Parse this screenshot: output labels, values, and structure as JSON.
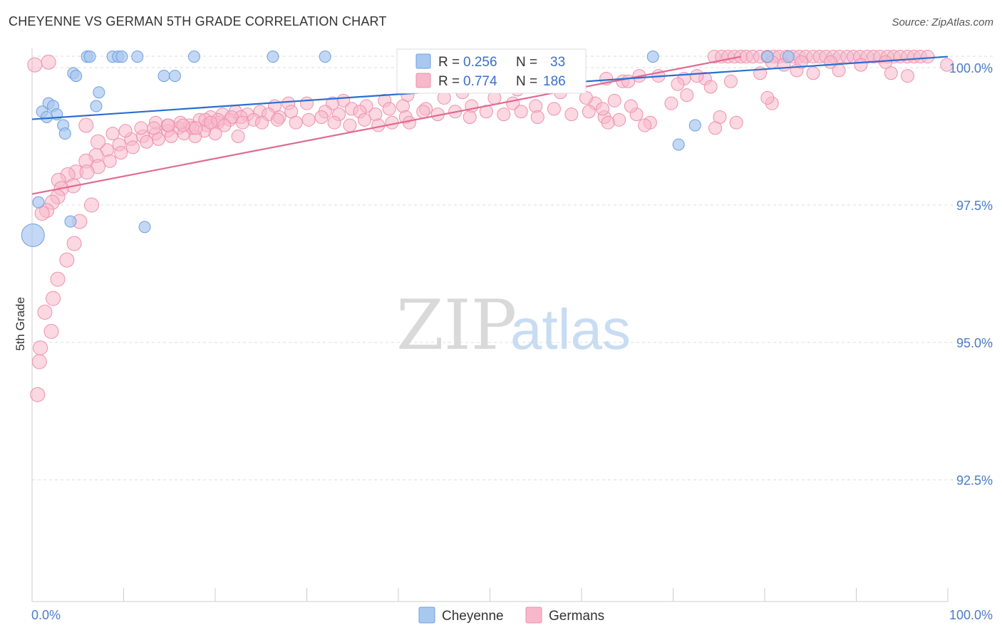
{
  "title": "CHEYENNE VS GERMAN 5TH GRADE CORRELATION CHART",
  "source": "Source: ZipAtlas.com",
  "watermark": {
    "zip": "ZIP",
    "atlas": "atlas"
  },
  "colors": {
    "cheyenne_fill": "#a9c8f0",
    "cheyenne_stroke": "#6f9fe0",
    "cheyenne_line": "#2a6ed0",
    "german_fill": "#f7b8cb",
    "german_stroke": "#ee90ad",
    "german_line": "#e06a93",
    "axis_text": "#4a7cc9",
    "grid": "#dddddd"
  },
  "legend": {
    "r_label": "R =",
    "n_label": "N =",
    "cheyenne": {
      "r": "0.256",
      "n": "33"
    },
    "german": {
      "r": "0.774",
      "n": "186"
    }
  },
  "chart_data": {
    "type": "scatter",
    "title": "CHEYENNE VS GERMAN 5TH GRADE CORRELATION CHART",
    "xlabel": "",
    "ylabel": "5th Grade",
    "xlim": [
      0,
      100
    ],
    "ylim": [
      90.0,
      100.4
    ],
    "y_ticks": [
      92.5,
      95.0,
      97.5,
      100.0
    ],
    "y_tick_labels": [
      "92.5%",
      "95.0%",
      "97.5%",
      "100.0%"
    ],
    "x_tick_labels": [
      "0.0%",
      "100.0%"
    ],
    "grid": true,
    "legend_position": "top-center",
    "series": [
      {
        "name": "Cheyenne",
        "trend": {
          "x": [
            0,
            100
          ],
          "y": [
            99.06,
            100.2
          ]
        },
        "points": [
          [
            6,
            100.2
          ],
          [
            6.3,
            100.2
          ],
          [
            8.8,
            100.2
          ],
          [
            9.4,
            100.2
          ],
          [
            9.8,
            100.2
          ],
          [
            11.5,
            100.2
          ],
          [
            17.7,
            100.2
          ],
          [
            26.3,
            100.2
          ],
          [
            32,
            100.2
          ],
          [
            67.8,
            100.2
          ],
          [
            80.3,
            100.2
          ],
          [
            82.6,
            100.2
          ],
          [
            4.5,
            99.9
          ],
          [
            4.8,
            99.85
          ],
          [
            14.4,
            99.85
          ],
          [
            15.6,
            99.85
          ],
          [
            7.3,
            99.55
          ],
          [
            1.8,
            99.35
          ],
          [
            2.3,
            99.3
          ],
          [
            7,
            99.3
          ],
          [
            1.1,
            99.2
          ],
          [
            2.7,
            99.15
          ],
          [
            1.6,
            99.1
          ],
          [
            3.4,
            98.95
          ],
          [
            3.6,
            98.8
          ],
          [
            72.4,
            98.95
          ],
          [
            70.6,
            98.6
          ],
          [
            0.7,
            97.55
          ],
          [
            4.2,
            97.2
          ],
          [
            12.3,
            97.1
          ],
          [
            0.1,
            96.95
          ]
        ],
        "sizes": [
          10,
          10,
          10,
          10,
          10,
          10,
          10,
          10,
          10,
          10,
          10,
          10,
          10,
          10,
          10,
          10,
          10,
          10,
          10,
          10,
          10,
          10,
          10,
          10,
          10,
          10,
          10,
          10,
          10,
          10,
          20
        ]
      },
      {
        "name": "Germans",
        "trend": {
          "x": [
            0,
            77.4
          ],
          "y": [
            97.7,
            100.2
          ]
        },
        "points": [
          [
            74.5,
            100.2
          ],
          [
            75.3,
            100.2
          ],
          [
            76,
            100.2
          ],
          [
            76.7,
            100.2
          ],
          [
            77.4,
            100.2
          ],
          [
            78,
            100.2
          ],
          [
            78.7,
            100.2
          ],
          [
            79.5,
            100.2
          ],
          [
            80.3,
            100.2
          ],
          [
            81,
            100.2
          ],
          [
            81.6,
            100.2
          ],
          [
            82.4,
            100.2
          ],
          [
            83.1,
            100.2
          ],
          [
            83.8,
            100.2
          ],
          [
            84.5,
            100.2
          ],
          [
            85.3,
            100.2
          ],
          [
            86,
            100.2
          ],
          [
            86.7,
            100.2
          ],
          [
            87.5,
            100.2
          ],
          [
            88.2,
            100.2
          ],
          [
            89,
            100.2
          ],
          [
            89.7,
            100.2
          ],
          [
            90.4,
            100.2
          ],
          [
            91.2,
            100.2
          ],
          [
            91.9,
            100.2
          ],
          [
            92.6,
            100.2
          ],
          [
            93.4,
            100.2
          ],
          [
            94.1,
            100.2
          ],
          [
            94.8,
            100.2
          ],
          [
            95.6,
            100.2
          ],
          [
            96.3,
            100.2
          ],
          [
            97,
            100.2
          ],
          [
            97.8,
            100.2
          ],
          [
            80.8,
            100.1
          ],
          [
            82.1,
            100.05
          ],
          [
            84,
            100.1
          ],
          [
            87.2,
            100.1
          ],
          [
            90.5,
            100.05
          ],
          [
            93.2,
            100.1
          ],
          [
            99.9,
            100.05
          ],
          [
            83.5,
            99.95
          ],
          [
            79.5,
            99.9
          ],
          [
            85.3,
            99.9
          ],
          [
            88.1,
            99.95
          ],
          [
            73.5,
            99.8
          ],
          [
            72.6,
            99.85
          ],
          [
            71.2,
            99.8
          ],
          [
            68.4,
            99.85
          ],
          [
            66.3,
            99.85
          ],
          [
            64.5,
            99.75
          ],
          [
            62.7,
            99.8
          ],
          [
            57.1,
            99.75
          ],
          [
            65.1,
            99.75
          ],
          [
            70.5,
            99.7
          ],
          [
            74.1,
            99.65
          ],
          [
            76.3,
            99.75
          ],
          [
            59.8,
            99.65
          ],
          [
            53,
            99.6
          ],
          [
            47,
            99.55
          ],
          [
            41,
            99.5
          ],
          [
            34,
            99.4
          ],
          [
            30,
            99.35
          ],
          [
            28,
            99.35
          ],
          [
            63.6,
            99.4
          ],
          [
            61.5,
            99.35
          ],
          [
            57.7,
            99.55
          ],
          [
            55,
            99.3
          ],
          [
            52.5,
            99.35
          ],
          [
            50.5,
            99.45
          ],
          [
            48,
            99.3
          ],
          [
            45,
            99.45
          ],
          [
            43,
            99.25
          ],
          [
            40.5,
            99.3
          ],
          [
            38.5,
            99.4
          ],
          [
            36.5,
            99.3
          ],
          [
            34.9,
            99.25
          ],
          [
            32.8,
            99.35
          ],
          [
            28.3,
            99.2
          ],
          [
            26.5,
            99.3
          ],
          [
            24.9,
            99.2
          ],
          [
            23.5,
            99.15
          ],
          [
            22.2,
            99.2
          ],
          [
            20.8,
            99.15
          ],
          [
            19.5,
            99.1
          ],
          [
            18.3,
            99.05
          ],
          [
            27,
            99.1
          ],
          [
            25.8,
            99.15
          ],
          [
            24.2,
            99.05
          ],
          [
            22.8,
            99.1
          ],
          [
            21.6,
            99.05
          ],
          [
            20.3,
            99.0
          ],
          [
            19.1,
            98.95
          ],
          [
            32,
            99.2
          ],
          [
            33.5,
            99.15
          ],
          [
            35.8,
            99.2
          ],
          [
            37.5,
            99.15
          ],
          [
            39,
            99.25
          ],
          [
            40.8,
            99.1
          ],
          [
            42.7,
            99.2
          ],
          [
            44.3,
            99.15
          ],
          [
            46.2,
            99.2
          ],
          [
            47.8,
            99.1
          ],
          [
            49.6,
            99.2
          ],
          [
            51.5,
            99.15
          ],
          [
            53.4,
            99.2
          ],
          [
            55.2,
            99.1
          ],
          [
            57,
            99.25
          ],
          [
            58.9,
            99.15
          ],
          [
            60.8,
            99.2
          ],
          [
            62.5,
            99.1
          ],
          [
            64.1,
            99.05
          ],
          [
            66,
            99.15
          ],
          [
            67.5,
            99.0
          ],
          [
            60.5,
            99.45
          ],
          [
            62.3,
            99.25
          ],
          [
            65.4,
            99.3
          ],
          [
            69.8,
            99.35
          ],
          [
            71.5,
            99.5
          ],
          [
            75.1,
            99.1
          ],
          [
            76.9,
            99.0
          ],
          [
            80.8,
            99.35
          ],
          [
            93.8,
            99.9
          ],
          [
            95.6,
            99.85
          ],
          [
            17.2,
            98.95
          ],
          [
            16,
            98.9
          ],
          [
            14.8,
            98.85
          ],
          [
            13.5,
            98.8
          ],
          [
            12.1,
            98.75
          ],
          [
            10.8,
            98.7
          ],
          [
            9.5,
            98.6
          ],
          [
            8.2,
            98.5
          ],
          [
            7,
            98.4
          ],
          [
            5.9,
            98.3
          ],
          [
            4.8,
            98.1
          ],
          [
            3.9,
            98.05
          ],
          [
            2.9,
            97.95
          ],
          [
            20,
            98.8
          ],
          [
            18.8,
            98.85
          ],
          [
            17.8,
            98.75
          ],
          [
            16.6,
            98.8
          ],
          [
            15.2,
            98.75
          ],
          [
            13.8,
            98.7
          ],
          [
            12.5,
            98.65
          ],
          [
            11,
            98.55
          ],
          [
            9.7,
            98.45
          ],
          [
            8.5,
            98.3
          ],
          [
            7.2,
            98.2
          ],
          [
            6,
            98.1
          ],
          [
            4.5,
            97.85
          ],
          [
            3.2,
            97.8
          ],
          [
            13.5,
            99.0
          ],
          [
            14.8,
            98.95
          ],
          [
            16.2,
            99.0
          ],
          [
            17.5,
            98.9
          ],
          [
            18.9,
            99.05
          ],
          [
            20.3,
            99.05
          ],
          [
            21.8,
            99.1
          ],
          [
            23,
            99.0
          ],
          [
            25.1,
            99.0
          ],
          [
            26.8,
            99.05
          ],
          [
            28.8,
            99.0
          ],
          [
            30.2,
            99.05
          ],
          [
            31.6,
            99.1
          ],
          [
            33,
            99.0
          ],
          [
            34.7,
            98.95
          ],
          [
            36.3,
            99.05
          ],
          [
            37.8,
            98.95
          ],
          [
            39.3,
            99.0
          ],
          [
            41.2,
            99.0
          ],
          [
            7.2,
            98.65
          ],
          [
            8.8,
            98.8
          ],
          [
            10.2,
            98.85
          ],
          [
            11.9,
            98.9
          ],
          [
            13.3,
            98.9
          ],
          [
            14.9,
            98.95
          ],
          [
            16.5,
            98.95
          ],
          [
            17.9,
            98.9
          ],
          [
            19.5,
            99.0
          ],
          [
            21,
            98.95
          ],
          [
            22.5,
            98.75
          ],
          [
            2.8,
            97.65
          ],
          [
            2.2,
            97.55
          ],
          [
            1.6,
            97.4
          ],
          [
            1.1,
            97.35
          ],
          [
            5.9,
            98.95
          ],
          [
            66.9,
            98.95
          ],
          [
            62.9,
            99.0
          ],
          [
            74.6,
            98.9
          ],
          [
            80.3,
            99.45
          ],
          [
            6.5,
            97.5
          ],
          [
            5.2,
            97.2
          ],
          [
            4.6,
            96.8
          ],
          [
            3.8,
            96.5
          ],
          [
            2.8,
            96.15
          ],
          [
            2.3,
            95.8
          ],
          [
            1.4,
            95.55
          ],
          [
            2.1,
            95.2
          ],
          [
            0.9,
            94.9
          ],
          [
            0.8,
            94.65
          ],
          [
            0.6,
            94.05
          ],
          [
            0.3,
            100.05
          ],
          [
            1.8,
            100.1
          ]
        ],
        "sizes_default": 9
      }
    ]
  }
}
